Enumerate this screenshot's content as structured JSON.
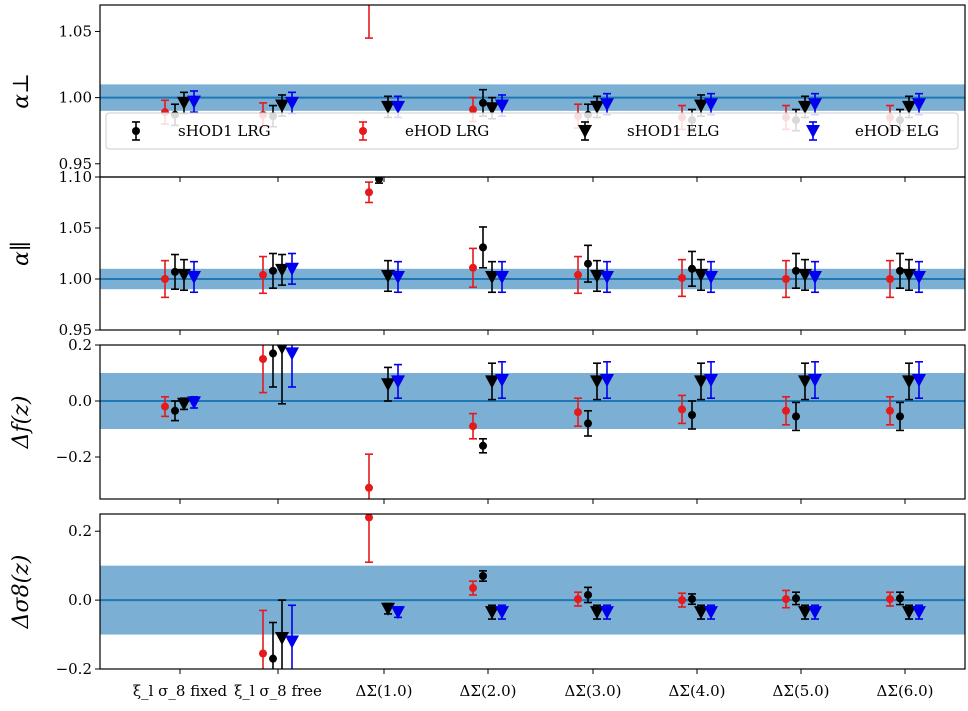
{
  "figure": {
    "x_categories": [
      "ξ_l σ_8 fixed",
      "ξ_l σ_8 free",
      "ΔΣ(1.0)",
      "ΔΣ(2.0)",
      "ΔΣ(3.0)",
      "ΔΣ(4.0)",
      "ΔΣ(5.0)",
      "ΔΣ(6.0)"
    ],
    "legend": [
      {
        "label": "sHOD1 LRG",
        "marker": "circle",
        "color": "#000000"
      },
      {
        "label": "eHOD LRG",
        "marker": "circle",
        "color": "#e41a1c"
      },
      {
        "label": "sHOD1 ELG",
        "marker": "triangle-down",
        "color": "#000000"
      },
      {
        "label": "eHOD ELG",
        "marker": "triangle-down",
        "color": "#0000ee"
      }
    ],
    "colors": {
      "band": "#7bafd4",
      "line": "#1f77b4",
      "red": "#e41a1c",
      "blue": "#0000ee",
      "black": "#000000"
    }
  },
  "chart_data": [
    {
      "type": "scatter",
      "ylabel": "α⊥",
      "ylim": [
        0.94,
        1.07
      ],
      "yticks": [
        "0.95",
        "1.00",
        "1.05"
      ],
      "yticks_values": [
        0.95,
        1.0,
        1.05
      ],
      "reference": 1.0,
      "band": [
        0.99,
        1.01
      ],
      "series": [
        {
          "name": "eHOD LRG",
          "values": [
            0.989,
            0.987,
            1.075,
            0.991,
            0.986,
            0.985,
            0.985,
            0.985
          ],
          "errors": [
            0.009,
            0.009,
            0.03,
            0.009,
            0.009,
            0.009,
            0.009,
            0.009
          ]
        },
        {
          "name": "sHOD1 LRG",
          "values": [
            0.987,
            0.986,
            null,
            0.996,
            0.987,
            0.983,
            0.983,
            0.983
          ],
          "errors": [
            0.008,
            0.008,
            null,
            0.01,
            0.008,
            0.008,
            0.008,
            0.008
          ]
        },
        {
          "name": "sHOD1 ELG",
          "values": [
            0.996,
            0.994,
            0.993,
            0.992,
            0.993,
            0.994,
            0.993,
            0.993
          ],
          "errors": [
            0.008,
            0.008,
            0.008,
            0.008,
            0.008,
            0.008,
            0.008,
            0.008
          ]
        },
        {
          "name": "eHOD ELG",
          "values": [
            0.997,
            0.996,
            0.993,
            0.994,
            0.995,
            0.995,
            0.995,
            0.995
          ],
          "errors": [
            0.008,
            0.008,
            0.008,
            0.008,
            0.008,
            0.008,
            0.008,
            0.008
          ]
        }
      ]
    },
    {
      "type": "scatter",
      "ylabel": "α∥",
      "ylim": [
        0.95,
        1.1
      ],
      "yticks": [
        "0.95",
        "1.00",
        "1.05",
        "1.10"
      ],
      "yticks_values": [
        0.95,
        1.0,
        1.05,
        1.1
      ],
      "reference": 1.0,
      "band": [
        0.99,
        1.01
      ],
      "series": [
        {
          "name": "eHOD LRG",
          "values": [
            1.0,
            1.004,
            1.085,
            1.011,
            1.004,
            1.001,
            1.0,
            1.0
          ],
          "errors": [
            0.018,
            0.018,
            0.01,
            0.019,
            0.018,
            0.018,
            0.018,
            0.018
          ]
        },
        {
          "name": "sHOD1 LRG",
          "values": [
            1.007,
            1.008,
            1.098,
            1.031,
            1.015,
            1.01,
            1.008,
            1.008
          ],
          "errors": [
            0.017,
            0.017,
            0.004,
            0.02,
            0.018,
            0.017,
            0.017,
            0.017
          ]
        },
        {
          "name": "sHOD1 ELG",
          "values": [
            1.004,
            1.009,
            1.003,
            1.002,
            1.003,
            1.004,
            1.004,
            1.004
          ],
          "errors": [
            0.015,
            0.015,
            0.015,
            0.015,
            0.015,
            0.015,
            0.015,
            0.015
          ]
        },
        {
          "name": "eHOD ELG",
          "values": [
            1.002,
            1.01,
            1.002,
            1.002,
            1.002,
            1.002,
            1.002,
            1.002
          ],
          "errors": [
            0.015,
            0.015,
            0.015,
            0.015,
            0.015,
            0.015,
            0.015,
            0.015
          ]
        }
      ]
    },
    {
      "type": "scatter",
      "ylabel": "Δf(z)",
      "ylim": [
        -0.35,
        0.2
      ],
      "yticks": [
        "−0.2",
        "0.0",
        "0.2"
      ],
      "yticks_values": [
        -0.2,
        0.0,
        0.2
      ],
      "reference": 0.0,
      "band": [
        -0.1,
        0.1
      ],
      "series": [
        {
          "name": "eHOD LRG",
          "values": [
            -0.02,
            0.15,
            -0.31,
            -0.09,
            -0.04,
            -0.03,
            -0.035,
            -0.035
          ],
          "errors": [
            0.035,
            0.12,
            0.12,
            0.045,
            0.05,
            0.05,
            0.05,
            0.05
          ]
        },
        {
          "name": "sHOD1 LRG",
          "values": [
            -0.035,
            0.17,
            null,
            -0.16,
            -0.08,
            -0.05,
            -0.055,
            -0.055
          ],
          "errors": [
            0.035,
            0.12,
            null,
            0.025,
            0.045,
            0.05,
            0.05,
            0.05
          ]
        },
        {
          "name": "sHOD1 ELG",
          "values": [
            -0.01,
            0.19,
            0.06,
            0.07,
            0.07,
            0.07,
            0.07,
            0.07
          ],
          "errors": [
            0.02,
            0.2,
            0.06,
            0.065,
            0.065,
            0.065,
            0.065,
            0.065
          ]
        },
        {
          "name": "eHOD ELG",
          "values": [
            -0.005,
            0.17,
            0.07,
            0.075,
            0.075,
            0.075,
            0.075,
            0.075
          ],
          "errors": [
            0.02,
            0.12,
            0.06,
            0.065,
            0.065,
            0.065,
            0.065,
            0.065
          ]
        }
      ]
    },
    {
      "type": "scatter",
      "ylabel": "Δσ8(z)",
      "ylim": [
        -0.2,
        0.25
      ],
      "yticks": [
        "−0.2",
        "0.0",
        "0.2"
      ],
      "yticks_values": [
        -0.2,
        0.0,
        0.2
      ],
      "reference": 0.0,
      "band": [
        -0.1,
        0.1
      ],
      "series": [
        {
          "name": "eHOD LRG",
          "values": [
            null,
            -0.155,
            0.24,
            0.035,
            0.003,
            0.0,
            0.003,
            0.003
          ],
          "errors": [
            null,
            0.125,
            0.13,
            0.02,
            0.02,
            0.02,
            0.025,
            0.02
          ]
        },
        {
          "name": "sHOD1 LRG",
          "values": [
            null,
            -0.17,
            null,
            0.07,
            0.015,
            0.003,
            0.005,
            0.005
          ],
          "errors": [
            null,
            0.105,
            null,
            0.015,
            0.022,
            0.015,
            0.018,
            0.018
          ]
        },
        {
          "name": "sHOD1 ELG",
          "values": [
            null,
            -0.11,
            -0.025,
            -0.035,
            -0.035,
            -0.035,
            -0.035,
            -0.035
          ],
          "errors": [
            null,
            0.11,
            0.015,
            0.02,
            0.02,
            0.02,
            0.02,
            0.02
          ]
        },
        {
          "name": "eHOD ELG",
          "values": [
            null,
            -0.12,
            -0.035,
            -0.035,
            -0.035,
            -0.035,
            -0.035,
            -0.035
          ],
          "errors": [
            null,
            0.105,
            0.015,
            0.02,
            0.02,
            0.02,
            0.02,
            0.02
          ]
        }
      ]
    }
  ]
}
